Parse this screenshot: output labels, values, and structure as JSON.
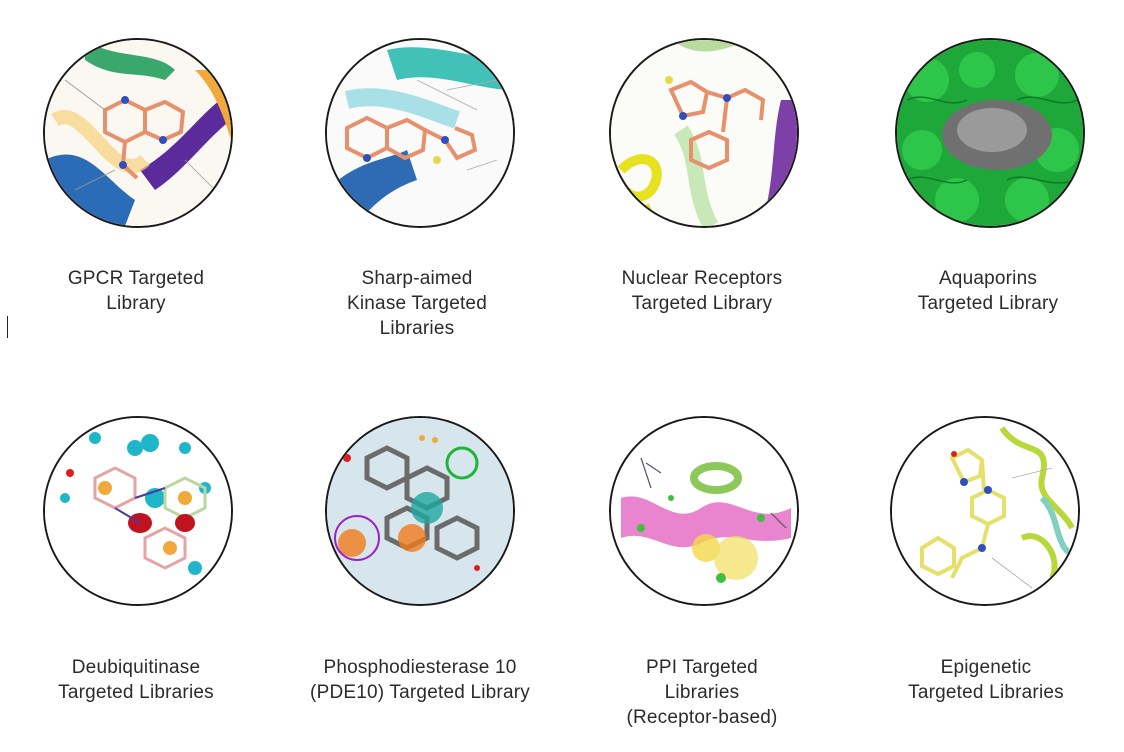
{
  "libraries": [
    {
      "lines": [
        "GPCR Targeted",
        "Library"
      ]
    },
    {
      "lines": [
        "Sharp-aimed",
        "Kinase Targeted",
        "Libraries"
      ]
    },
    {
      "lines": [
        "Nuclear Receptors",
        "Targeted Library"
      ]
    },
    {
      "lines": [
        "Aquaporins",
        "Targeted Library"
      ]
    },
    {
      "lines": [
        "Deubiquitinase",
        "Targeted Libraries"
      ]
    },
    {
      "lines": [
        "Phosphodiesterase 10",
        "(PDE10) Targeted Library"
      ]
    },
    {
      "lines": [
        "PPI Targeted",
        "Libraries",
        "(Receptor-based)"
      ]
    },
    {
      "lines": [
        "Epigenetic",
        "Targeted Libraries"
      ]
    }
  ],
  "icons": [
    "gpcr-molecule-icon",
    "kinase-molecule-icon",
    "nuclear-receptor-molecule-icon",
    "aquaporin-molecule-icon",
    "deubiquitinase-molecule-icon",
    "pde10-molecule-icon",
    "ppi-molecule-icon",
    "epigenetic-molecule-icon"
  ]
}
